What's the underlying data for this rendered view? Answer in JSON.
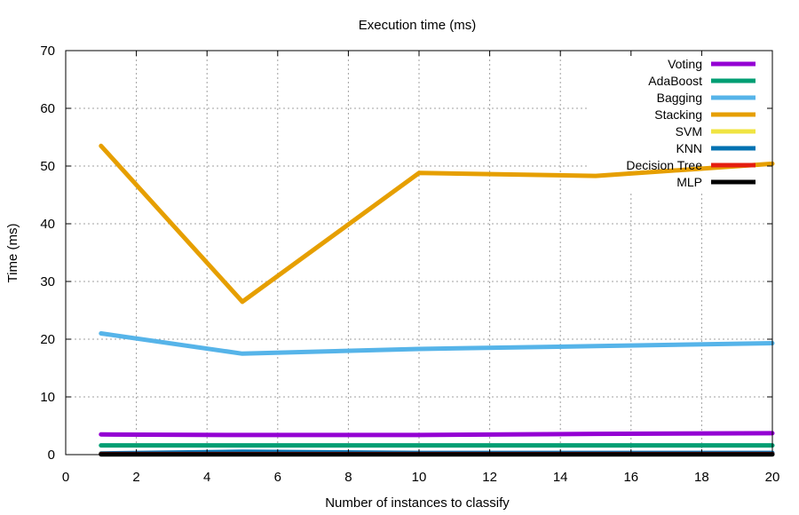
{
  "chart_data": {
    "type": "line",
    "title": "Execution time (ms)",
    "xlabel": "Number of instances to classify",
    "ylabel": "Time (ms)",
    "xlim": [
      0,
      20
    ],
    "ylim": [
      0,
      70
    ],
    "xticks": [
      0,
      2,
      4,
      6,
      8,
      10,
      12,
      14,
      16,
      18,
      20
    ],
    "yticks": [
      0,
      10,
      20,
      30,
      40,
      50,
      60,
      70
    ],
    "grid": true,
    "legend_position": "top-right",
    "x": [
      1,
      5,
      10,
      15,
      20
    ],
    "series": [
      {
        "name": "Voting",
        "color": "#9400d3",
        "values": [
          3.5,
          3.4,
          3.4,
          3.6,
          3.7
        ]
      },
      {
        "name": "AdaBoost",
        "color": "#009e73",
        "values": [
          1.6,
          1.6,
          1.6,
          1.6,
          1.6
        ]
      },
      {
        "name": "Bagging",
        "color": "#56b4e9",
        "values": [
          21.0,
          17.5,
          18.3,
          18.8,
          19.3
        ]
      },
      {
        "name": "Stacking",
        "color": "#e69f00",
        "values": [
          53.5,
          26.5,
          48.8,
          48.3,
          50.4
        ]
      },
      {
        "name": "SVM",
        "color": "#f0e442",
        "values": [
          0.2,
          0.2,
          0.2,
          0.2,
          0.2
        ]
      },
      {
        "name": "KNN",
        "color": "#0072b2",
        "values": [
          0.2,
          0.5,
          0.3,
          0.3,
          0.3
        ]
      },
      {
        "name": "Decision Tree",
        "color": "#e51e10",
        "values": [
          0.1,
          0.1,
          0.1,
          0.1,
          0.1
        ]
      },
      {
        "name": "MLP",
        "color": "#000000",
        "values": [
          0.05,
          0.05,
          0.05,
          0.05,
          0.05
        ]
      }
    ]
  }
}
